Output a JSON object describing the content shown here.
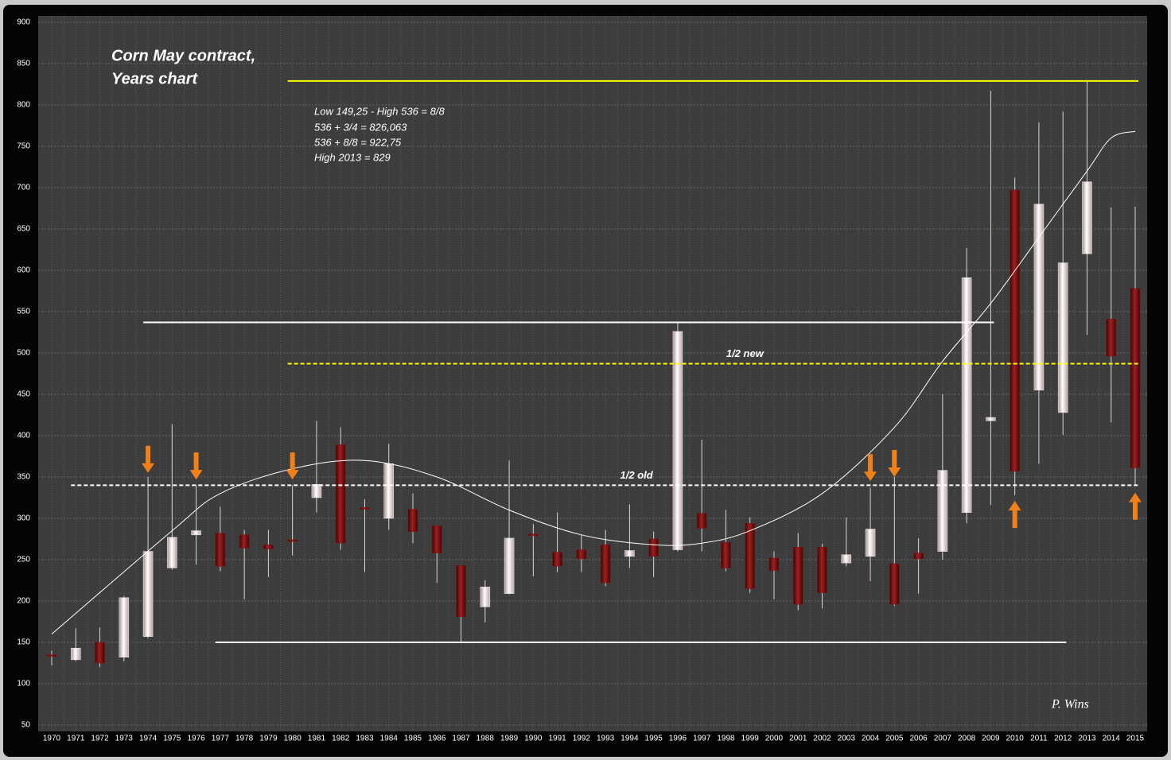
{
  "chart_data": {
    "type": "candlestick",
    "title": [
      "Corn May contract,",
      "Years chart"
    ],
    "annotations": [
      "Low 149,25 - High 536 = 8/8",
      "536 + 3/4 = 826,063",
      "536 + 8/8 = 922,75",
      "High 2013 = 829"
    ],
    "signature": "P. Wins",
    "categories": [
      "1970",
      "1971",
      "1972",
      "1973",
      "1974",
      "1975",
      "1976",
      "1977",
      "1978",
      "1979",
      "1980",
      "1981",
      "1982",
      "1983",
      "1984",
      "1985",
      "1986",
      "1987",
      "1988",
      "1989",
      "1990",
      "1991",
      "1992",
      "1993",
      "1994",
      "1995",
      "1996",
      "1997",
      "1998",
      "1999",
      "2000",
      "2001",
      "2002",
      "2003",
      "2004",
      "2005",
      "2006",
      "2007",
      "2008",
      "2009",
      "2010",
      "2011",
      "2012",
      "2013",
      "2014",
      "2015"
    ],
    "open": [
      135,
      129,
      150,
      132,
      157,
      240,
      280,
      282,
      280,
      268,
      274,
      325,
      389,
      313,
      300,
      311,
      291,
      243,
      193,
      209,
      281,
      259,
      262,
      268,
      254,
      275,
      262,
      306,
      271,
      294,
      252,
      265,
      265,
      246,
      254,
      245,
      258,
      260,
      307,
      418,
      697,
      455,
      428,
      620,
      541,
      578
    ],
    "high": [
      140,
      167,
      168,
      206,
      350,
      414,
      340,
      314,
      286,
      286,
      340,
      418,
      410,
      323,
      390,
      330,
      291,
      243,
      225,
      370,
      293,
      307,
      280,
      286,
      317,
      284,
      536,
      395,
      310,
      301,
      260,
      282,
      269,
      301,
      337,
      350,
      276,
      450,
      627,
      817,
      712,
      779,
      792,
      829,
      676,
      677
    ],
    "low": [
      122,
      127,
      120,
      127,
      155,
      238,
      244,
      236,
      202,
      229,
      255,
      307,
      262,
      235,
      286,
      270,
      222,
      150,
      174,
      208,
      230,
      235,
      235,
      218,
      240,
      229,
      260,
      260,
      236,
      210,
      202,
      189,
      191,
      242,
      224,
      194,
      209,
      250,
      294,
      316,
      328,
      366,
      401,
      522,
      416,
      340
    ],
    "close": [
      133,
      143,
      125,
      204,
      260,
      277,
      285,
      242,
      264,
      263,
      273,
      341,
      270,
      312,
      366,
      284,
      258,
      181,
      217,
      276,
      280,
      242,
      251,
      222,
      261,
      254,
      526,
      288,
      240,
      215,
      237,
      196,
      210,
      256,
      287,
      196,
      251,
      358,
      591,
      422,
      357,
      680,
      609,
      707,
      496,
      361
    ],
    "up_color": "#eadede",
    "down_color": "#7a1414",
    "ylim": [
      50,
      900
    ],
    "yticks": [
      50,
      100,
      150,
      200,
      250,
      300,
      350,
      400,
      450,
      500,
      550,
      600,
      650,
      700,
      750,
      800,
      850,
      900
    ],
    "grid": true,
    "reference_lines": [
      {
        "value": 829,
        "color": "#ffff00",
        "dashed": false,
        "x_range": [
          "1980",
          "2015"
        ]
      },
      {
        "value": 537,
        "color": "#ffffff",
        "dashed": false,
        "x_range": [
          "1974",
          "2009"
        ]
      },
      {
        "value": 487,
        "color": "#ffff00",
        "dashed": true,
        "x_range": [
          "1980",
          "2015"
        ],
        "label": "1/2  new"
      },
      {
        "value": 340,
        "color": "#ffffff",
        "dashed": true,
        "x_range": [
          "1971",
          "2015"
        ],
        "label": "1/2 old"
      },
      {
        "value": 150,
        "color": "#ffffff",
        "dashed": false,
        "x_range": [
          "1977",
          "2012"
        ]
      }
    ],
    "trend": {
      "color": "#ffffff",
      "x": [
        "1970",
        "1975",
        "1977",
        "1980",
        "1983",
        "1986",
        "1989",
        "1992",
        "1995",
        "1997",
        "1999",
        "2002",
        "2005",
        "2007",
        "2009",
        "2011",
        "2013",
        "2014",
        "2015"
      ],
      "values": [
        160,
        285,
        330,
        360,
        370,
        350,
        310,
        280,
        268,
        270,
        285,
        330,
        410,
        490,
        560,
        640,
        720,
        760,
        768
      ]
    },
    "arrows": {
      "color": "#f0801a",
      "items": [
        {
          "x": "1974",
          "direction": "down",
          "value": 355
        },
        {
          "x": "1976",
          "direction": "down",
          "value": 347
        },
        {
          "x": "1980",
          "direction": "down",
          "value": 347
        },
        {
          "x": "2004",
          "direction": "down",
          "value": 345
        },
        {
          "x": "2005",
          "direction": "down",
          "value": 350
        },
        {
          "x": "2010",
          "direction": "up",
          "value": 321
        },
        {
          "x": "2015",
          "direction": "up",
          "value": 331
        }
      ]
    }
  }
}
